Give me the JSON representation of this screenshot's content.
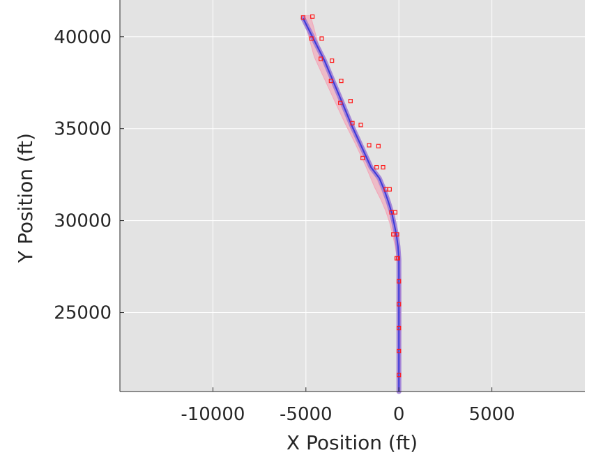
{
  "chart_data": {
    "type": "line",
    "xlabel": "X Position (ft)",
    "ylabel": "Y Position (ft)",
    "xlim": [
      -15000,
      10000
    ],
    "ylim": [
      20700,
      42000
    ],
    "xticks": [
      -10000,
      -5000,
      0,
      5000
    ],
    "yticks": [
      25000,
      30000,
      35000,
      40000
    ],
    "grid": true,
    "colors": {
      "background": "#e3e3e3",
      "grid": "#ffffff",
      "axis": "#262626",
      "path_line": "#3a3ad9",
      "path_band": "#9a78d6",
      "uncertainty_band": "#f2a6b8",
      "marker": "#ff1a1a"
    },
    "series": [
      {
        "style": "line-with-band",
        "x": [
          0,
          0,
          0,
          0,
          0,
          0,
          0,
          0,
          -50,
          -130,
          -250,
          -380,
          -560,
          -800,
          -1050,
          -1500,
          -2000,
          -2550,
          -3000,
          -3500,
          -4000,
          -4550,
          -5150
        ],
        "y": [
          20700,
          21500,
          22800,
          24100,
          25400,
          26700,
          27300,
          27900,
          28600,
          29200,
          29800,
          30400,
          31000,
          31700,
          32300,
          32900,
          34000,
          35200,
          36300,
          37500,
          38700,
          39800,
          41000
        ]
      },
      {
        "style": "markers",
        "marker": "square",
        "x": [
          0,
          0,
          0,
          0,
          0,
          -120,
          -50,
          -100,
          -300,
          -200,
          -400,
          -500,
          -700,
          -850,
          -1200,
          -1100,
          -1600,
          -1950,
          -2050,
          -2500,
          -2600,
          -3150,
          -3100,
          -3650,
          -3600,
          -4200,
          -4150,
          -4700,
          -4650,
          -5150
        ],
        "y": [
          21600,
          22900,
          24150,
          25450,
          26700,
          27950,
          27950,
          29250,
          29250,
          30450,
          30450,
          31700,
          31700,
          32900,
          32900,
          34050,
          34100,
          33400,
          35200,
          35300,
          36500,
          36400,
          37600,
          37600,
          38700,
          38800,
          39900,
          39900,
          41100,
          41050
        ]
      }
    ],
    "band": {
      "x_lower": [
        0,
        0,
        0,
        0,
        0,
        0,
        0,
        -100,
        -200,
        -350,
        -500,
        -700,
        -950,
        -1300,
        -1800,
        -2350,
        -2900,
        -3450,
        -4000,
        -4550,
        -5150
      ],
      "x_upper": [
        0,
        50,
        80,
        100,
        100,
        100,
        50,
        -50,
        -150,
        -250,
        -350,
        -500,
        -700,
        -1000,
        -1500,
        -2050,
        -2550,
        -3050,
        -3600,
        -4150,
        -4750
      ],
      "y": [
        20700,
        21600,
        22900,
        24200,
        25400,
        26700,
        27300,
        28000,
        28600,
        29300,
        29900,
        30500,
        31100,
        31800,
        33000,
        34200,
        35300,
        36500,
        37700,
        38900,
        41150
      ]
    }
  }
}
